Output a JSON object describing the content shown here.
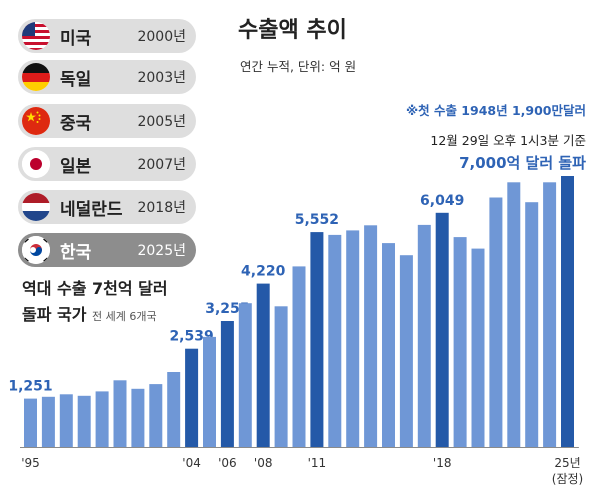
{
  "title": "수출액 추이",
  "subtitle": "연간 누적, 단위: 억 원",
  "notes": {
    "first_export": "※첫 수출 1948년 1,900만달러",
    "timestamp": "12월 29일 오후 1시3분 기준",
    "milestone": "7,000억 달러 돌파"
  },
  "countries": [
    {
      "name": "미국",
      "year": "2000년",
      "flag": "us-flag",
      "highlight": false
    },
    {
      "name": "독일",
      "year": "2003년",
      "flag": "germany-flag",
      "highlight": false
    },
    {
      "name": "중국",
      "year": "2005년",
      "flag": "china-flag",
      "highlight": false
    },
    {
      "name": "일본",
      "year": "2007년",
      "flag": "japan-flag",
      "highlight": false
    },
    {
      "name": "네덜란드",
      "year": "2018년",
      "flag": "netherlands-flag",
      "highlight": false
    },
    {
      "name": "한국",
      "year": "2025년",
      "flag": "korea-flag",
      "highlight": true
    }
  ],
  "caption": {
    "line1": "역대 수출 7천억 달러",
    "line2_main": "돌파 국가",
    "line2_small": "전 세계 6개국"
  },
  "colors": {
    "bar_light": "#6f97d6",
    "bar_dark": "#2459a8",
    "accent_text": "#2e63b5",
    "pill_bg": "#dedede",
    "pill_highlight_bg": "#8d8d8d"
  },
  "chart_data": {
    "type": "bar",
    "x": [
      "1995",
      "1996",
      "1997",
      "1998",
      "1999",
      "2000",
      "2001",
      "2002",
      "2003",
      "2004",
      "2005",
      "2006",
      "2007",
      "2008",
      "2009",
      "2010",
      "2011",
      "2012",
      "2013",
      "2014",
      "2015",
      "2016",
      "2017",
      "2018",
      "2019",
      "2020",
      "2021",
      "2022",
      "2023",
      "2024",
      "2025"
    ],
    "values": [
      1251,
      1297,
      1362,
      1323,
      1437,
      1723,
      1504,
      1625,
      1938,
      2539,
      2844,
      3255,
      3715,
      4220,
      3635,
      4664,
      5552,
      5479,
      5596,
      5727,
      5268,
      4954,
      5737,
      6049,
      5422,
      5125,
      6444,
      6836,
      6322,
      6838,
      7000
    ],
    "labeled_values": {
      "1995": "1,251",
      "2004": "2,539",
      "2006": "3,255",
      "2008": "4,220",
      "2011": "5,552",
      "2018": "6,049"
    },
    "x_tick_labels": [
      {
        "x": "1995",
        "text": "'95"
      },
      {
        "x": "2004",
        "text": "'04"
      },
      {
        "x": "2006",
        "text": "'06"
      },
      {
        "x": "2008",
        "text": "'08"
      },
      {
        "x": "2011",
        "text": "'11"
      },
      {
        "x": "2018",
        "text": "'18"
      },
      {
        "x": "2025",
        "text": "25년"
      }
    ],
    "x_tick_sublabel": "(잠정)",
    "highlighted_years": [
      "2004",
      "2006",
      "2008",
      "2011",
      "2018",
      "2025"
    ],
    "ylim": [
      0,
      7000
    ],
    "grid": false,
    "legend": "none"
  }
}
